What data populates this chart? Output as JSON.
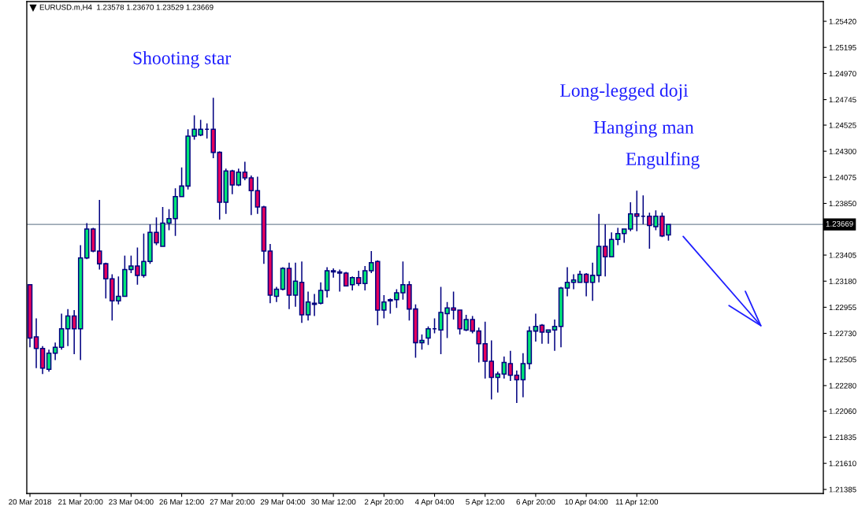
{
  "chart_data": {
    "type": "candlestick",
    "title": "EURUSD.m,H4  1.23578 1.23670 1.23529 1.23669",
    "categories": [
      "20 Mar 2018",
      null,
      null,
      null,
      null,
      null,
      null,
      null,
      "21 Mar 20:00",
      null,
      null,
      null,
      null,
      null,
      null,
      null,
      "23 Mar 04:00",
      null,
      null,
      null,
      null,
      null,
      null,
      null,
      "26 Mar 12:00",
      null,
      null,
      null,
      null,
      null,
      null,
      null,
      "27 Mar 20:00",
      null,
      null,
      null,
      null,
      null,
      null,
      null,
      "29 Mar 04:00",
      null,
      null,
      null,
      null,
      null,
      null,
      null,
      "30 Mar 12:00",
      null,
      null,
      null,
      null,
      null,
      null,
      null,
      "2 Apr 20:00",
      null,
      null,
      null,
      null,
      null,
      null,
      null,
      "4 Apr 04:00",
      null,
      null,
      null,
      null,
      null,
      null,
      null,
      "5 Apr 12:00",
      null,
      null,
      null,
      null,
      null,
      null,
      null,
      "6 Apr 20:00",
      null,
      null,
      null,
      null,
      null,
      null,
      null,
      "10 Apr 04:00",
      null,
      null,
      null,
      null,
      null,
      null,
      null,
      "11 Apr 12:00",
      null,
      null,
      null,
      null,
      null,
      null,
      null,
      null,
      null,
      null,
      null,
      null,
      null,
      null,
      null,
      null,
      null,
      null,
      null,
      null,
      null,
      null,
      null,
      null,
      null,
      null,
      null,
      null,
      null
    ],
    "ohlc": [
      [
        1.2315,
        1.2315,
        1.2261,
        1.2269
      ],
      [
        1.227,
        1.2286,
        1.2243,
        1.226
      ],
      [
        1.226,
        1.2262,
        1.2238,
        1.2243
      ],
      [
        1.2242,
        1.2259,
        1.224,
        1.2256
      ],
      [
        1.2256,
        1.2265,
        1.225,
        1.2261
      ],
      [
        1.2261,
        1.229,
        1.2259,
        1.2277
      ],
      [
        1.2277,
        1.2294,
        1.2262,
        1.2288
      ],
      [
        1.2288,
        1.2293,
        1.2255,
        1.2277
      ],
      [
        1.2277,
        1.2349,
        1.225,
        1.2338
      ],
      [
        1.2338,
        1.2368,
        1.2337,
        1.2363
      ],
      [
        1.2363,
        1.2364,
        1.2343,
        1.2344
      ],
      [
        1.2344,
        1.2388,
        1.2328,
        1.2333
      ],
      [
        1.2333,
        1.2334,
        1.2303,
        1.232
      ],
      [
        1.232,
        1.2324,
        1.2284,
        1.2301
      ],
      [
        1.2301,
        1.2322,
        1.2298,
        1.2305
      ],
      [
        1.2305,
        1.234,
        1.2305,
        1.2328
      ],
      [
        1.2328,
        1.234,
        1.2325,
        1.2331
      ],
      [
        1.2331,
        1.2347,
        1.2315,
        1.2323
      ],
      [
        1.2323,
        1.2359,
        1.2321,
        1.2335
      ],
      [
        1.2335,
        1.2367,
        1.2333,
        1.236
      ],
      [
        1.236,
        1.2373,
        1.2349,
        1.2351
      ],
      [
        1.2348,
        1.2382,
        1.2348,
        1.2368
      ],
      [
        1.2368,
        1.238,
        1.2362,
        1.2372
      ],
      [
        1.2372,
        1.2398,
        1.2357,
        1.2391
      ],
      [
        1.2391,
        1.2416,
        1.2391,
        1.24
      ],
      [
        1.24,
        1.2449,
        1.2397,
        1.2443
      ],
      [
        1.2443,
        1.2461,
        1.244,
        1.2449
      ],
      [
        1.2444,
        1.2457,
        1.2443,
        1.2449
      ],
      [
        1.2449,
        1.2454,
        1.2441,
        1.2449
      ],
      [
        1.2449,
        1.2476,
        1.2424,
        1.2429
      ],
      [
        1.2429,
        1.243,
        1.2371,
        1.2386
      ],
      [
        1.2386,
        1.2415,
        1.2376,
        1.2413
      ],
      [
        1.2413,
        1.2414,
        1.2393,
        1.2401
      ],
      [
        1.2401,
        1.2415,
        1.24,
        1.2412
      ],
      [
        1.2412,
        1.2421,
        1.2405,
        1.2407
      ],
      [
        1.2407,
        1.2409,
        1.2375,
        1.2396
      ],
      [
        1.2396,
        1.2408,
        1.2376,
        1.2382
      ],
      [
        1.2382,
        1.2383,
        1.2333,
        1.2344
      ],
      [
        1.2344,
        1.235,
        1.2299,
        1.2306
      ],
      [
        1.2305,
        1.2313,
        1.23,
        1.2311
      ],
      [
        1.2311,
        1.233,
        1.231,
        1.2329
      ],
      [
        1.2329,
        1.2334,
        1.2294,
        1.2306
      ],
      [
        1.2306,
        1.2334,
        1.2296,
        1.2318
      ],
      [
        1.2317,
        1.2335,
        1.2282,
        1.2289
      ],
      [
        1.2289,
        1.2309,
        1.2284,
        1.23
      ],
      [
        1.2298,
        1.2307,
        1.2288,
        1.2299
      ],
      [
        1.2299,
        1.2317,
        1.2298,
        1.231
      ],
      [
        1.231,
        1.233,
        1.2304,
        1.2327
      ],
      [
        1.2326,
        1.2329,
        1.2321,
        1.2327
      ],
      [
        1.2326,
        1.2328,
        1.2309,
        1.2325
      ],
      [
        1.2325,
        1.2326,
        1.2314,
        1.2314
      ],
      [
        1.2315,
        1.2322,
        1.231,
        1.2321
      ],
      [
        1.2321,
        1.2327,
        1.2314,
        1.2316
      ],
      [
        1.2316,
        1.2331,
        1.231,
        1.2327
      ],
      [
        1.2327,
        1.2344,
        1.2325,
        1.2334
      ],
      [
        1.2335,
        1.2336,
        1.228,
        1.2293
      ],
      [
        1.2293,
        1.2306,
        1.2286,
        1.23
      ],
      [
        1.2301,
        1.2303,
        1.229,
        1.2302
      ],
      [
        1.2302,
        1.2311,
        1.2295,
        1.2308
      ],
      [
        1.2308,
        1.2335,
        1.2302,
        1.2315
      ],
      [
        1.2315,
        1.2318,
        1.2284,
        1.2294
      ],
      [
        1.2294,
        1.2298,
        1.2252,
        1.2265
      ],
      [
        1.2265,
        1.2272,
        1.2259,
        1.2267
      ],
      [
        1.2269,
        1.2279,
        1.2263,
        1.2277
      ],
      [
        1.2277,
        1.2286,
        1.2273,
        1.2277
      ],
      [
        1.2276,
        1.2313,
        1.2255,
        1.2291
      ],
      [
        1.229,
        1.23,
        1.2269,
        1.2295
      ],
      [
        1.2295,
        1.2309,
        1.2285,
        1.2293
      ],
      [
        1.2293,
        1.2293,
        1.2272,
        1.2277
      ],
      [
        1.2276,
        1.2289,
        1.2275,
        1.2285
      ],
      [
        1.2285,
        1.2288,
        1.2273,
        1.2275
      ],
      [
        1.2275,
        1.2278,
        1.2248,
        1.2264
      ],
      [
        1.2264,
        1.2283,
        1.2234,
        1.2249
      ],
      [
        1.2249,
        1.2267,
        1.2216,
        1.2235
      ],
      [
        1.2235,
        1.224,
        1.2222,
        1.2238
      ],
      [
        1.2238,
        1.2253,
        1.2234,
        1.2248
      ],
      [
        1.2247,
        1.2258,
        1.2232,
        1.2237
      ],
      [
        1.2237,
        1.2241,
        1.2213,
        1.2233
      ],
      [
        1.2233,
        1.2256,
        1.2218,
        1.2247
      ],
      [
        1.2247,
        1.2279,
        1.2242,
        1.2275
      ],
      [
        1.2275,
        1.229,
        1.2266,
        1.2279
      ],
      [
        1.228,
        1.2281,
        1.2264,
        1.2274
      ],
      [
        1.2274,
        1.2276,
        1.2264,
        1.2276
      ],
      [
        1.2276,
        1.2285,
        1.2258,
        1.2279
      ],
      [
        1.2279,
        1.2313,
        1.2261,
        1.2312
      ],
      [
        1.2312,
        1.233,
        1.2305,
        1.2317
      ],
      [
        1.2317,
        1.2324,
        1.2311,
        1.2319
      ],
      [
        1.2317,
        1.2327,
        1.2317,
        1.2324
      ],
      [
        1.2324,
        1.2325,
        1.2305,
        1.2317
      ],
      [
        1.2317,
        1.2334,
        1.2301,
        1.2323
      ],
      [
        1.2323,
        1.2376,
        1.2317,
        1.2348
      ],
      [
        1.2348,
        1.2367,
        1.2322,
        1.2339
      ],
      [
        1.2339,
        1.236,
        1.2339,
        1.2354
      ],
      [
        1.2354,
        1.2364,
        1.2349,
        1.2359
      ],
      [
        1.2359,
        1.2363,
        1.2351,
        1.2363
      ],
      [
        1.2363,
        1.2386,
        1.2361,
        1.2376
      ],
      [
        1.2376,
        1.2396,
        1.2361,
        1.2374
      ],
      [
        1.2374,
        1.2392,
        1.2367,
        1.2374
      ],
      [
        1.2374,
        1.2377,
        1.2346,
        1.2366
      ],
      [
        1.2365,
        1.2379,
        1.2362,
        1.2374
      ],
      [
        1.2374,
        1.2377,
        1.2356,
        1.2357
      ],
      [
        1.23578,
        1.2367,
        1.23529,
        1.23669
      ],
      null,
      null,
      null,
      null,
      null,
      null,
      null,
      null,
      null,
      null,
      null,
      null,
      null,
      null,
      null,
      null,
      null,
      null,
      null,
      null,
      null,
      null,
      null,
      null
    ],
    "colors": [
      "#e6005c",
      "#e6005c",
      "#e6005c",
      "#00e676",
      "#00e676",
      "#00e676",
      "#00e676",
      "#e6005c",
      "#00e676",
      "#00e676",
      "#e6005c",
      "#e6005c",
      "#e6005c",
      "#e6005c",
      "#00e676",
      "#00e676",
      "#00e676",
      "#e6005c",
      "#00e676",
      "#00e676",
      "#e6005c",
      "#00e676",
      "#00e676",
      "#00e676",
      "#00e676",
      "#00e676",
      "#00e676",
      "#00e676",
      "#000080",
      "#e6005c",
      "#e6005c",
      "#00e676",
      "#e6005c",
      "#00e676",
      "#e6005c",
      "#e6005c",
      "#e6005c",
      "#e6005c",
      "#e6005c",
      "#00e676",
      "#00e676",
      "#e6005c",
      "#00e676",
      "#e6005c",
      "#00e676",
      "#00e676",
      "#00e676",
      "#00e676",
      "#00e676",
      "#e6005c",
      "#e6005c",
      "#00e676",
      "#e6005c",
      "#00e676",
      "#00e676",
      "#e6005c",
      "#00e676",
      "#00e676",
      "#00e676",
      "#00e676",
      "#e6005c",
      "#e6005c",
      "#00e676",
      "#00e676",
      "#000080",
      "#00e676",
      "#00e676",
      "#e6005c",
      "#e6005c",
      "#00e676",
      "#e6005c",
      "#e6005c",
      "#e6005c",
      "#e6005c",
      "#00e676",
      "#00e676",
      "#e6005c",
      "#e6005c",
      "#00e676",
      "#00e676",
      "#00e676",
      "#e6005c",
      "#00e676",
      "#00e676",
      "#00e676",
      "#00e676",
      "#00e676",
      "#00e676",
      "#e6005c",
      "#00e676",
      "#00e676",
      "#e6005c",
      "#00e676",
      "#00e676",
      "#00e676",
      "#00e676",
      "#e6005c",
      "#000080",
      "#e6005c",
      "#00e676",
      "#e6005c",
      "#00e676",
      null,
      null,
      null,
      null,
      null,
      null,
      null,
      null,
      null,
      null,
      null,
      null,
      null,
      null,
      null,
      null,
      null,
      null,
      null,
      null,
      null,
      null,
      null,
      null
    ],
    "color": "#000080",
    "ylim": [
      1.2135,
      1.2559
    ],
    "yticks": [
      {
        "value": 1.21385,
        "label": "1.21385"
      },
      {
        "value": 1.2161,
        "label": "1.21610"
      },
      {
        "value": 1.21835,
        "label": "1.21835"
      },
      {
        "value": 1.2206,
        "label": "1.22060"
      },
      {
        "value": 1.2228,
        "label": "1.22280"
      },
      {
        "value": 1.22505,
        "label": "1.22505"
      },
      {
        "value": 1.2273,
        "label": "1.22730"
      },
      {
        "value": 1.22955,
        "label": "1.22955"
      },
      {
        "value": 1.2318,
        "label": "1.23180"
      },
      {
        "value": 1.23405,
        "label": "1.23405"
      },
      {
        "value": 1.2385,
        "label": "1.23850"
      },
      {
        "value": 1.24075,
        "label": "1.24075"
      },
      {
        "value": 1.243,
        "label": "1.24300"
      },
      {
        "value": 1.24525,
        "label": "1.24525"
      },
      {
        "value": 1.24745,
        "label": "1.24745"
      },
      {
        "value": 1.2497,
        "label": "1.24970"
      },
      {
        "value": 1.25195,
        "label": "1.25195"
      },
      {
        "value": 1.2542,
        "label": "1.25420"
      }
    ],
    "ref_lines": [
      {
        "axis": "y",
        "value": 1.23669,
        "label": "1.23669",
        "color": "#778899"
      }
    ],
    "annotations": [
      "Shooting star",
      "Long-legged doji",
      "Hanging man",
      "Engulfing"
    ]
  }
}
